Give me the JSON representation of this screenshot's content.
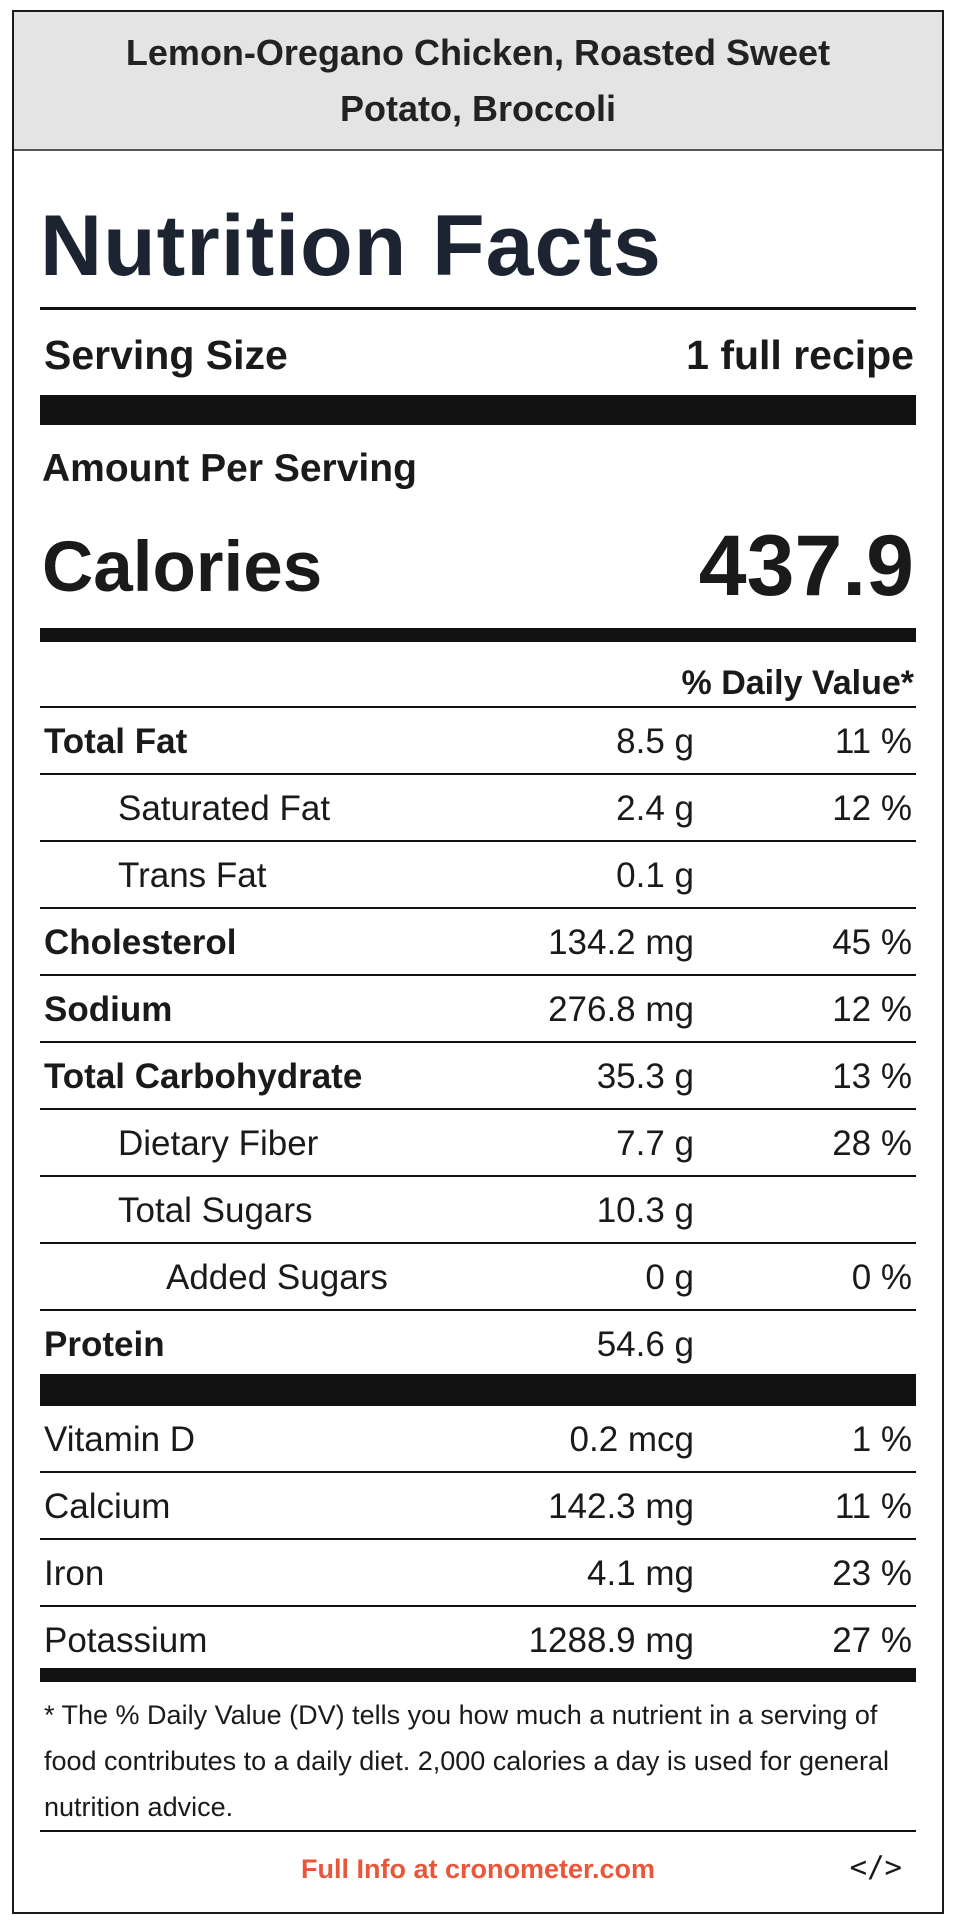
{
  "header": {
    "recipe_title": "Lemon-Oregano Chicken, Roasted Sweet Potato, Broccoli"
  },
  "label": {
    "heading": "Nutrition Facts",
    "serving_size_label": "Serving Size",
    "serving_size_value": "1 full recipe",
    "amount_per_serving": "Amount Per Serving",
    "calories_label": "Calories",
    "calories_value": "437.9",
    "daily_value_header": "% Daily Value*"
  },
  "nutrients": [
    {
      "name": "Total Fat",
      "amount": "8.5 g",
      "dv": "11 %"
    },
    {
      "name": "Saturated Fat",
      "amount": "2.4 g",
      "dv": "12 %"
    },
    {
      "name": "Trans Fat",
      "amount": "0.1 g",
      "dv": ""
    },
    {
      "name": "Cholesterol",
      "amount": "134.2 mg",
      "dv": "45 %"
    },
    {
      "name": "Sodium",
      "amount": "276.8 mg",
      "dv": "12 %"
    },
    {
      "name": "Total Carbohydrate",
      "amount": "35.3 g",
      "dv": "13 %"
    },
    {
      "name": "Dietary Fiber",
      "amount": "7.7 g",
      "dv": "28 %"
    },
    {
      "name": "Total Sugars",
      "amount": "10.3 g",
      "dv": ""
    },
    {
      "name": "Added Sugars",
      "amount": "0 g",
      "dv": "0 %"
    },
    {
      "name": "Protein",
      "amount": "54.6 g",
      "dv": ""
    }
  ],
  "vitamins": [
    {
      "name": "Vitamin D",
      "amount": "0.2 mcg",
      "dv": "1 %"
    },
    {
      "name": "Calcium",
      "amount": "142.3 mg",
      "dv": "11 %"
    },
    {
      "name": "Iron",
      "amount": "4.1 mg",
      "dv": "23 %"
    },
    {
      "name": "Potassium",
      "amount": "1288.9 mg",
      "dv": "27 %"
    }
  ],
  "footnote": "* The % Daily Value (DV) tells you how much a nutrient in a serving of food contributes to a daily diet. 2,000 calories a day is used for general nutrition advice.",
  "footer": {
    "link_text": "Full Info at cronometer.com",
    "embed_icon_text": "</>"
  }
}
